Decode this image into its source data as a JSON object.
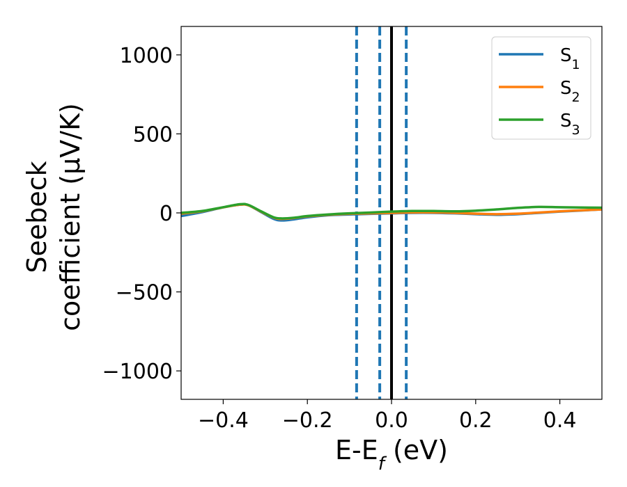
{
  "chart_data": {
    "type": "line",
    "xlabel": "E-E_f (eV)",
    "ylabel_line1": "Seebeck",
    "ylabel_line2": "coefficient  (μV/K)",
    "xlim": [
      -0.5,
      0.5
    ],
    "ylim": [
      -1180,
      1180
    ],
    "xticks": [
      -0.4,
      -0.2,
      0.0,
      0.2,
      0.4
    ],
    "xtick_labels": [
      "−0.4",
      "−0.2",
      "0.0",
      "0.2",
      "0.4"
    ],
    "yticks": [
      1000,
      500,
      0,
      -500,
      -1000
    ],
    "ytick_labels": [
      "1000",
      "500",
      "0",
      "−500",
      "−1000"
    ],
    "grid": false,
    "legend_position": "top-right",
    "vertical_lines": [
      {
        "x": -0.083,
        "style": "dashed",
        "color": "#1f77b4"
      },
      {
        "x": -0.028,
        "style": "dashed",
        "color": "#1f77b4"
      },
      {
        "x": 0.0,
        "style": "solid",
        "color": "#000000"
      },
      {
        "x": 0.035,
        "style": "dashed",
        "color": "#1f77b4"
      }
    ],
    "series": [
      {
        "name": "S1",
        "label_main": "S",
        "label_sub": "1",
        "color": "#1f77b4",
        "x": [
          -0.5,
          -0.45,
          -0.4,
          -0.36,
          -0.34,
          -0.31,
          -0.28,
          -0.26,
          -0.23,
          -0.2,
          -0.15,
          -0.1,
          -0.05,
          0.0,
          0.05,
          0.1,
          0.15,
          0.2,
          0.25,
          0.3,
          0.35,
          0.4,
          0.45,
          0.5
        ],
        "values": [
          -20,
          5,
          35,
          52,
          48,
          5,
          -38,
          -48,
          -40,
          -28,
          -15,
          -10,
          -6,
          -3,
          0,
          0,
          -3,
          -8,
          -12,
          -8,
          0,
          8,
          15,
          22
        ]
      },
      {
        "name": "S2",
        "label_main": "S",
        "label_sub": "2",
        "color": "#ff7f0e",
        "x": [
          -0.5,
          -0.45,
          -0.4,
          -0.36,
          -0.34,
          -0.31,
          -0.28,
          -0.26,
          -0.23,
          -0.2,
          -0.15,
          -0.1,
          -0.05,
          0.0,
          0.05,
          0.1,
          0.15,
          0.2,
          0.25,
          0.3,
          0.35,
          0.4,
          0.45,
          0.5
        ],
        "values": [
          -5,
          10,
          35,
          52,
          48,
          8,
          -30,
          -38,
          -32,
          -22,
          -12,
          -6,
          -3,
          0,
          3,
          3,
          0,
          -5,
          -8,
          -5,
          2,
          10,
          16,
          22
        ]
      },
      {
        "name": "S3",
        "label_main": "S",
        "label_sub": "3",
        "color": "#2ca02c",
        "x": [
          -0.5,
          -0.45,
          -0.4,
          -0.36,
          -0.34,
          -0.31,
          -0.28,
          -0.26,
          -0.23,
          -0.2,
          -0.15,
          -0.1,
          -0.05,
          0.0,
          0.05,
          0.1,
          0.15,
          0.2,
          0.25,
          0.3,
          0.35,
          0.4,
          0.45,
          0.5
        ],
        "values": [
          0,
          12,
          36,
          55,
          50,
          10,
          -28,
          -35,
          -30,
          -20,
          -10,
          -3,
          2,
          8,
          12,
          12,
          10,
          14,
          22,
          32,
          38,
          36,
          34,
          33
        ]
      }
    ]
  }
}
